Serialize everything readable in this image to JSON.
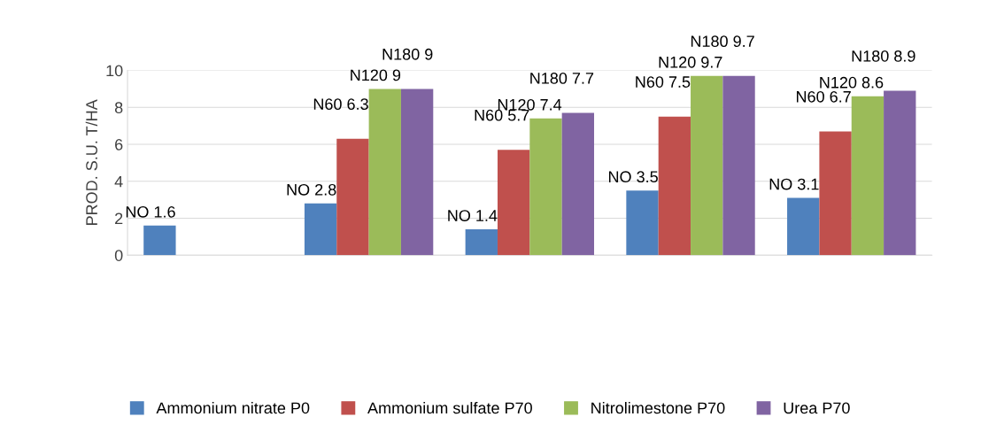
{
  "chart_data": {
    "type": "bar",
    "ylabel": "PROD. S.U. T/HA",
    "categories": [
      null,
      null,
      null,
      null,
      null
    ],
    "series": [
      {
        "name": "Ammonium nitrate P0",
        "color": "#4f81bd",
        "values": [
          1.6,
          2.8,
          1.4,
          3.5,
          3.1
        ],
        "value_labels": [
          "NO 1.6",
          "NO 2.8",
          "NO 1.4",
          "NO 3.5",
          "NO 3.1"
        ]
      },
      {
        "name": "Ammonium sulfate P70",
        "color": "#c0504d",
        "values": [
          null,
          6.3,
          5.7,
          7.5,
          6.7
        ],
        "value_labels": [
          null,
          "N60 6.3",
          "N60 5.7",
          "N60 7.5",
          "N60 6.7"
        ]
      },
      {
        "name": "Nitrolimestone P70",
        "color": "#9bbb59",
        "values": [
          null,
          9,
          7.4,
          9.7,
          8.6
        ],
        "value_labels": [
          null,
          "N120 9",
          "N120 7.4",
          "N120 9.7",
          "N120 8.6"
        ]
      },
      {
        "name": "Urea P70",
        "color": "#8064a2",
        "values": [
          null,
          9,
          7.7,
          9.7,
          8.9
        ],
        "value_labels": [
          null,
          "N180 9",
          "N180 7.7",
          "N180 9.7",
          "N180 8.9"
        ]
      }
    ],
    "ylim": [
      0,
      10
    ],
    "yticks": [
      0,
      2,
      4,
      6,
      8,
      10
    ],
    "grid": "y",
    "legend": "bottom",
    "tick_labels": "y"
  }
}
